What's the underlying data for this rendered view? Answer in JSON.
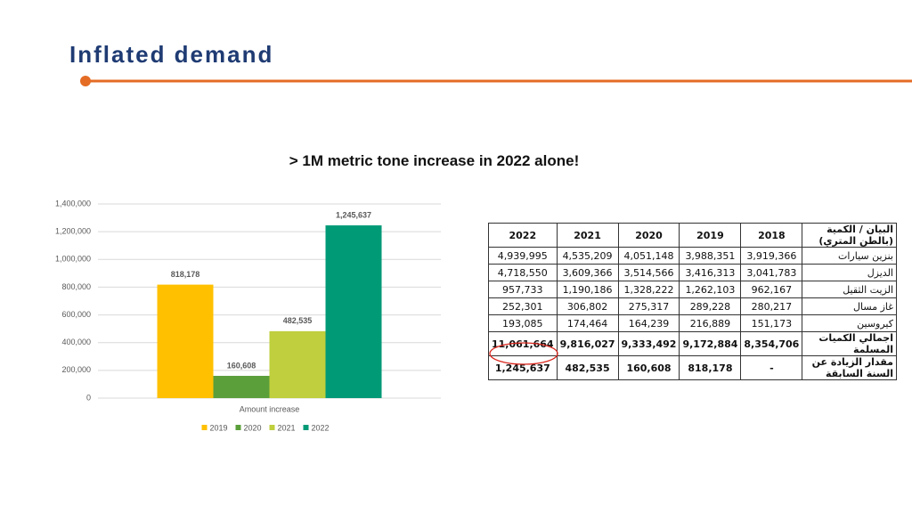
{
  "slide": {
    "title": "Inflated demand",
    "subtitle": "> 1M metric tone increase in 2022 alone!"
  },
  "chart_data": {
    "type": "bar",
    "categories": [
      "Amount increase"
    ],
    "series": [
      {
        "name": "2019",
        "color": "#ffc000",
        "values": [
          818178
        ],
        "value_labels": [
          "818,178"
        ]
      },
      {
        "name": "2020",
        "color": "#5b9f3b",
        "values": [
          160608
        ],
        "value_labels": [
          "160,608"
        ]
      },
      {
        "name": "2021",
        "color": "#bfcf3d",
        "values": [
          482535
        ],
        "value_labels": [
          "482,535"
        ]
      },
      {
        "name": "2022",
        "color": "#009a77",
        "values": [
          1245637
        ],
        "value_labels": [
          "1,245,637"
        ]
      }
    ],
    "ylim": [
      0,
      1400000
    ],
    "yticks": [
      0,
      {
        "value": 200000,
        "label": "200,000"
      },
      {
        "value": 400000,
        "label": "400,000"
      },
      {
        "value": 600000,
        "label": "600,000"
      },
      {
        "value": 800000,
        "label": "800,000"
      },
      {
        "value": 1000000,
        "label": "1,000,000"
      },
      {
        "value": 1200000,
        "label": "1,200,000"
      },
      {
        "value": 1400000,
        "label": "1,400,000"
      }
    ],
    "grid": true,
    "legend": "bottom"
  },
  "table": {
    "header": [
      "2022",
      "2021",
      "2020",
      "2019",
      "2018",
      "البيان / الكمية (بالطن المتري)"
    ],
    "rows": [
      [
        "4,939,995",
        "4,535,209",
        "4,051,148",
        "3,988,351",
        "3,919,366",
        "بنزين سيارات"
      ],
      [
        "4,718,550",
        "3,609,366",
        "3,514,566",
        "3,416,313",
        "3,041,783",
        "الديزل"
      ],
      [
        "957,733",
        "1,190,186",
        "1,328,222",
        "1,262,103",
        "962,167",
        "الزيت الثقيل"
      ],
      [
        "252,301",
        "306,802",
        "275,317",
        "289,228",
        "280,217",
        "غاز مسال"
      ],
      [
        "193,085",
        "174,464",
        "164,239",
        "216,889",
        "151,173",
        "كيروسين"
      ],
      [
        "11,061,664",
        "9,816,027",
        "9,333,492",
        "9,172,884",
        "8,354,706",
        "اجمالي الكميات المسلمة"
      ],
      [
        "1,245,637",
        "482,535",
        "160,608",
        "818,178",
        "-",
        "مقدار الزيادة عن السنة السابقة"
      ]
    ]
  }
}
